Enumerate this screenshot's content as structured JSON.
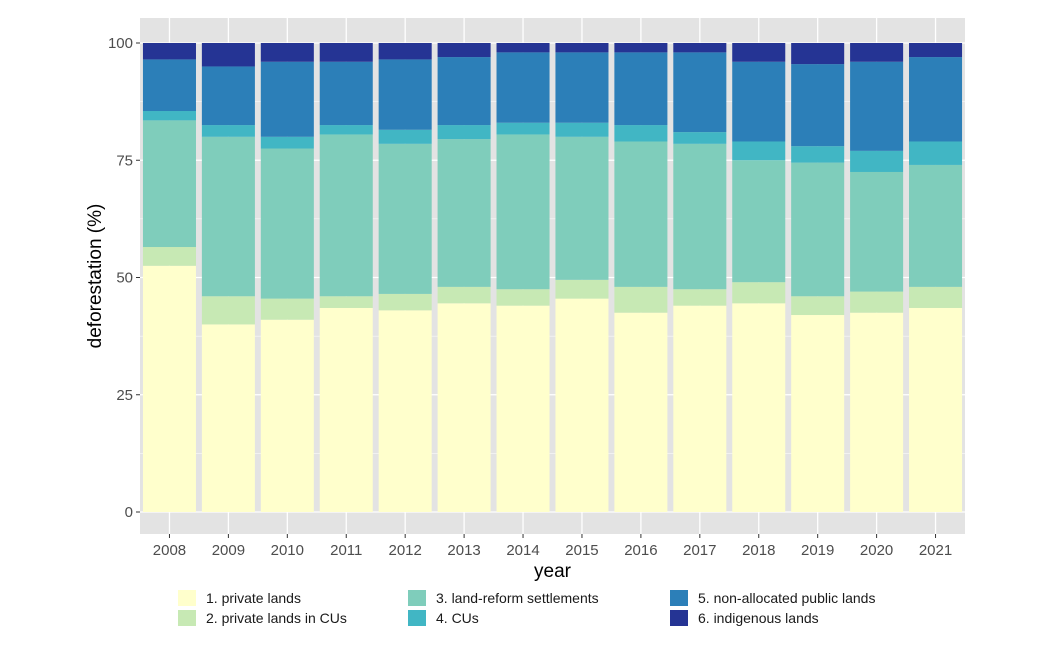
{
  "chart_data": {
    "type": "bar",
    "stacked": true,
    "xlabel": "year",
    "ylabel": "deforestation (%)",
    "ylim": [
      0,
      100
    ],
    "yticks": [
      0,
      25,
      50,
      75,
      100
    ],
    "grid": true,
    "legend_position": "bottom",
    "categories": [
      "2008",
      "2009",
      "2010",
      "2011",
      "2012",
      "2013",
      "2014",
      "2015",
      "2016",
      "2017",
      "2018",
      "2019",
      "2020",
      "2021"
    ],
    "series": [
      {
        "name": "1. private lands",
        "color": "#ffffcc",
        "values": [
          52.5,
          40.0,
          41.0,
          43.5,
          43.0,
          44.5,
          44.0,
          45.5,
          42.5,
          44.0,
          44.5,
          42.0,
          42.5,
          43.5
        ]
      },
      {
        "name": "2. private lands in CUs",
        "color": "#c7e9b4",
        "values": [
          4.0,
          6.0,
          4.5,
          2.5,
          3.5,
          3.5,
          3.5,
          4.0,
          5.5,
          3.5,
          4.5,
          4.0,
          4.5,
          4.5
        ]
      },
      {
        "name": "3. land-reform settlements",
        "color": "#7fcdbb",
        "values": [
          27.0,
          34.0,
          32.0,
          34.5,
          32.0,
          31.5,
          33.0,
          30.5,
          31.0,
          31.0,
          26.0,
          28.5,
          25.5,
          26.0
        ]
      },
      {
        "name": "4. CUs",
        "color": "#41b6c4",
        "values": [
          2.0,
          2.5,
          2.5,
          2.0,
          3.0,
          3.0,
          2.5,
          3.0,
          3.5,
          2.5,
          4.0,
          3.5,
          4.5,
          5.0
        ]
      },
      {
        "name": "5. non-allocated public lands",
        "color": "#2c7fb8",
        "values": [
          11.0,
          12.5,
          16.0,
          13.5,
          15.0,
          14.5,
          15.0,
          15.0,
          15.5,
          17.0,
          17.0,
          17.5,
          19.0,
          18.0
        ]
      },
      {
        "name": "6. indigenous lands",
        "color": "#253494",
        "values": [
          3.5,
          5.0,
          4.0,
          4.0,
          3.5,
          3.0,
          2.0,
          2.0,
          2.0,
          2.0,
          4.0,
          4.5,
          4.0,
          3.0
        ]
      }
    ]
  },
  "style": {
    "panel_background": "#e3e3e3",
    "grid_color": "#ffffff"
  }
}
